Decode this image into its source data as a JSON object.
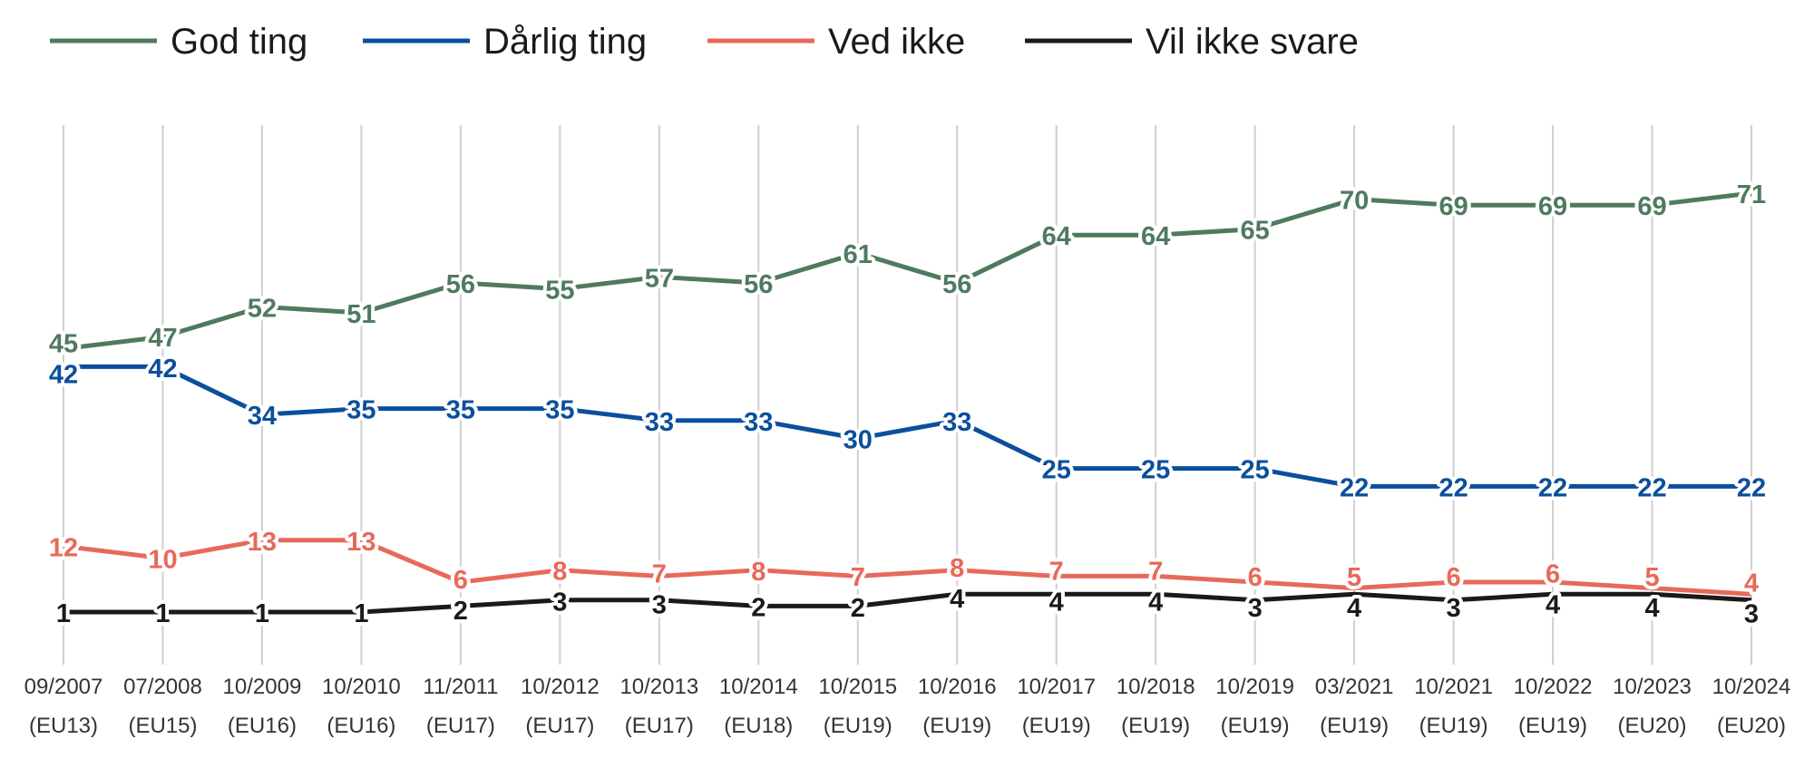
{
  "chart_data": {
    "type": "line",
    "title": "",
    "xlabel": "",
    "ylabel": "",
    "grid": "vertical",
    "legend_position": "top-left",
    "categories": [
      [
        "09/2007",
        "(EU13)"
      ],
      [
        "07/2008",
        "(EU15)"
      ],
      [
        "10/2009",
        "(EU16)"
      ],
      [
        "10/2010",
        "(EU16)"
      ],
      [
        "11/2011",
        "(EU17)"
      ],
      [
        "10/2012",
        "(EU17)"
      ],
      [
        "10/2013",
        "(EU17)"
      ],
      [
        "10/2014",
        "(EU18)"
      ],
      [
        "10/2015",
        "(EU19)"
      ],
      [
        "10/2016",
        "(EU19)"
      ],
      [
        "10/2017",
        "(EU19)"
      ],
      [
        "10/2018",
        "(EU19)"
      ],
      [
        "10/2019",
        "(EU19)"
      ],
      [
        "03/2021",
        "(EU19)"
      ],
      [
        "10/2021",
        "(EU19)"
      ],
      [
        "10/2022",
        "(EU19)"
      ],
      [
        "10/2023",
        "(EU20)"
      ],
      [
        "10/2024",
        "(EU20)"
      ]
    ],
    "series": [
      {
        "name": "God ting",
        "color": "#4f7a5f",
        "values": [
          45,
          47,
          52,
          51,
          56,
          55,
          57,
          56,
          61,
          56,
          64,
          64,
          65,
          70,
          69,
          69,
          69,
          71
        ]
      },
      {
        "name": "Dårlig ting",
        "color": "#0b4f9c",
        "values": [
          42,
          42,
          34,
          35,
          35,
          35,
          33,
          33,
          30,
          33,
          25,
          25,
          25,
          22,
          22,
          22,
          22,
          22
        ]
      },
      {
        "name": "Ved ikke",
        "color": "#e8695a",
        "values": [
          12,
          10,
          13,
          13,
          6,
          8,
          7,
          8,
          7,
          8,
          7,
          7,
          6,
          5,
          6,
          6,
          5,
          4
        ]
      },
      {
        "name": "Vil ikke svare",
        "color": "#1a1a1a",
        "values": [
          1,
          1,
          1,
          1,
          2,
          3,
          3,
          2,
          2,
          4,
          4,
          4,
          3,
          4,
          3,
          4,
          4,
          3
        ]
      }
    ]
  }
}
